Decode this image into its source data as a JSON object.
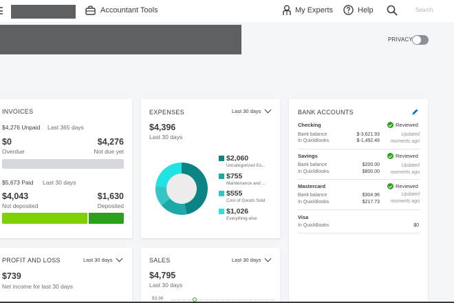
{
  "header": {
    "accountant_tools": "Accountant Tools",
    "my_experts": "My Experts",
    "help": "Help",
    "search_placeholder": "Search"
  },
  "privacy": {
    "label": "PRIVACY"
  },
  "invoices": {
    "title": "INVOICES",
    "unpaid_amount": "$4,276 Unpaid",
    "unpaid_period": "Last 365 days",
    "overdue_value": "$0",
    "overdue_label": "Overdue",
    "not_due_value": "$4,276",
    "not_due_label": "Not due yet",
    "paid_amount": "$5,673 Paid",
    "paid_period": "Last 30 days",
    "not_deposited_value": "$4,043",
    "not_deposited_label": "Not deposited",
    "deposited_value": "$1,630",
    "deposited_label": "Deposited"
  },
  "expenses": {
    "title": "EXPENSES",
    "period": "Last 30 days",
    "total": "$4,396",
    "total_period": "Last 30 days",
    "items": [
      {
        "amount": "$2,060",
        "label": "Uncategorized Ex...",
        "color": "#0d8484",
        "value": 2060
      },
      {
        "amount": "$755",
        "label": "Maintenance and ...",
        "color": "#1fa8a8",
        "value": 755
      },
      {
        "amount": "$555",
        "label": "Cost of Goods Sold",
        "color": "#36c5c5",
        "value": 555
      },
      {
        "amount": "$1,026",
        "label": "Everything else",
        "color": "#21e3e3",
        "value": 1026
      }
    ]
  },
  "bank_accounts": {
    "title": "BANK ACCOUNTS",
    "accounts": [
      {
        "name": "Checking",
        "bank_label": "Bank balance",
        "bank_value": "$-3,621.93",
        "qb_label": "In QuickBooks",
        "qb_value": "$-1,492.46",
        "status": "Reviewed",
        "updated": "Updated moments ago"
      },
      {
        "name": "Savings",
        "bank_label": "Bank balance",
        "bank_value": "$200.00",
        "qb_label": "In QuickBooks",
        "qb_value": "$800.00",
        "status": "Reviewed",
        "updated": "Updated moments ago"
      },
      {
        "name": "Mastercard",
        "bank_label": "Bank balance",
        "bank_value": "$304.96",
        "qb_label": "In QuickBooks",
        "qb_value": "$217.73",
        "status": "Reviewed",
        "updated": "Updated moments ago"
      },
      {
        "name": "Visa",
        "qb_label": "In QuickBooks",
        "qb_value": "$0"
      }
    ]
  },
  "profit_loss": {
    "title": "PROFIT AND LOSS",
    "period": "Last 30 days",
    "value": "$739",
    "subtitle": "Net income for last 30 days"
  },
  "sales": {
    "title": "SALES",
    "period": "Last 30 days",
    "value": "$4,795",
    "subtitle": "Last 30 days",
    "axis_label": "$3.3K"
  }
}
